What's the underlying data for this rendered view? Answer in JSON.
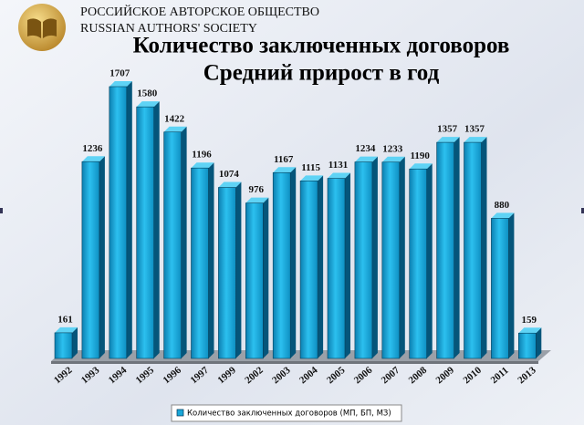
{
  "header": {
    "org_ru": "РОССИЙСКОЕ АВТОРСКОЕ ОБЩЕСТВО",
    "org_en": "RUSSIAN AUTHORS' SOCIETY"
  },
  "chart_data": {
    "type": "bar",
    "title": [
      "Количество заключенных договоров",
      "Средний прирост в год"
    ],
    "categories": [
      "1992",
      "1993",
      "1994",
      "1995",
      "1996",
      "1997",
      "1999",
      "2002",
      "2003",
      "2004",
      "2005",
      "2006",
      "2007",
      "2008",
      "2009",
      "2010",
      "2011",
      "2013"
    ],
    "series": [
      {
        "name": "Количество заключенных договоров (МП, БП, МЗ)",
        "color": "#1aa7d8",
        "values": [
          161,
          1236,
          1707,
          1580,
          1422,
          1196,
          1074,
          976,
          1167,
          1115,
          1131,
          1234,
          1233,
          1190,
          1357,
          1357,
          880,
          159
        ]
      }
    ]
  }
}
